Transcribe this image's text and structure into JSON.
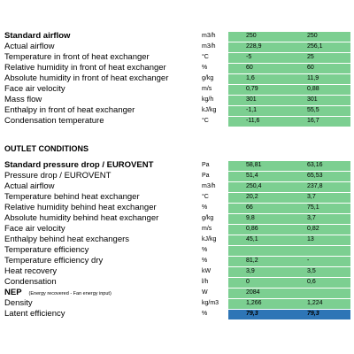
{
  "sections": [
    {
      "rows": [
        {
          "label": "Standard airflow",
          "unit": "m3/h",
          "values": [
            "250",
            "250"
          ],
          "bold": true
        },
        {
          "label": "Actual airflow",
          "unit": "m3/h",
          "values": [
            "228,9",
            "256,1"
          ]
        },
        {
          "label": "Temperature in front of heat exchanger",
          "unit": "°C",
          "values": [
            "-5",
            "25"
          ]
        },
        {
          "label": "Relative humidity in front of heat exchanger",
          "unit": "%",
          "values": [
            "60",
            "60"
          ]
        },
        {
          "label": "Absolute humidity in front of heat exchanger",
          "unit": "g/kg",
          "values": [
            "1,6",
            "11,9"
          ]
        },
        {
          "label": "Face air velocity",
          "unit": "m/s",
          "values": [
            "0,79",
            "0,88"
          ]
        },
        {
          "label": "Mass flow",
          "unit": "kg/h",
          "values": [
            "301",
            "301"
          ]
        },
        {
          "label": "Enthalpy in front of heat exchanger",
          "unit": "kJ/kg",
          "values": [
            "-1,1",
            "55,5"
          ]
        },
        {
          "label": "Condensation temperature",
          "unit": "°C",
          "values": [
            "-11,6",
            "16,7"
          ]
        }
      ]
    },
    {
      "title": "OUTLET CONDITIONS",
      "rows": [
        {
          "label": "Standard pressure drop   / EUROVENT",
          "unit": "Pa",
          "values": [
            "58,81",
            "63,16"
          ],
          "bold": true
        },
        {
          "label": "Pressure drop   / EUROVENT",
          "unit": "Pa",
          "values": [
            "51,4",
            "65,53"
          ]
        },
        {
          "label": "Actual airflow",
          "unit": "m3/h",
          "values": [
            "250,4",
            "237,8"
          ]
        },
        {
          "label": "Temperature behind heat exchanger",
          "unit": "°C",
          "values": [
            "20,2",
            "3,7"
          ]
        },
        {
          "label": "Relative humidity behind heat exchanger",
          "unit": "%",
          "values": [
            "66",
            "75,1"
          ]
        },
        {
          "label": "Absolute humidity behind heat exchanger",
          "unit": "g/kg",
          "values": [
            "9,8",
            "3,7"
          ]
        },
        {
          "label": "Face air velocity",
          "unit": "m/s",
          "values": [
            "0,86",
            "0,82"
          ]
        },
        {
          "label": "Enthalpy behind heat exchangers",
          "unit": "kJ/kg",
          "values": [
            "45,1",
            "13"
          ]
        },
        {
          "label": "Temperature efficiency",
          "unit": "%",
          "values": [
            null,
            null
          ]
        },
        {
          "label": "Temperature efficiency dry",
          "unit": "%",
          "values": [
            "81,2",
            "-"
          ]
        },
        {
          "label": "Heat recovery",
          "unit": "kW",
          "values": [
            "3,9",
            "3,5"
          ]
        },
        {
          "label": "Condensation",
          "unit": "l/h",
          "values": [
            "0",
            "0,6"
          ]
        },
        {
          "label": "NEP",
          "note": "(Energy recovered - Fan energy input)",
          "unit": "W",
          "values": [
            "2084",
            null
          ],
          "bold": true
        },
        {
          "label": "Density",
          "unit": "kg/m3",
          "values": [
            "1,266",
            "1,224"
          ]
        },
        {
          "label": "Latent efficiency",
          "unit": "%",
          "values": [
            "79,3",
            "79,3"
          ],
          "highlight": true
        }
      ]
    }
  ]
}
